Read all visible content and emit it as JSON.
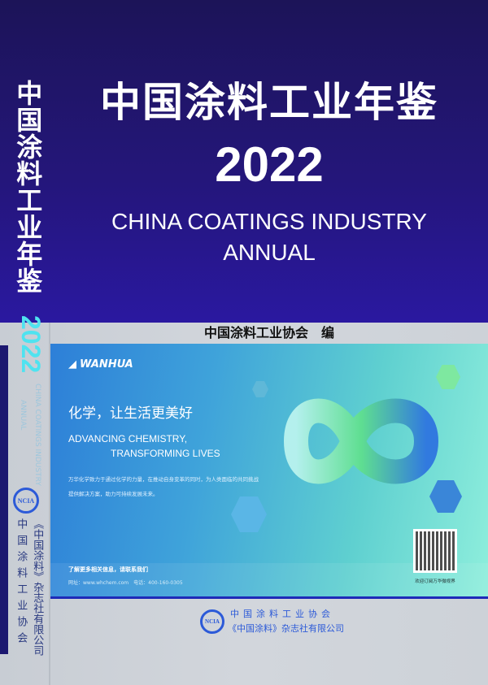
{
  "cover": {
    "title": "中国涂料工业年鉴",
    "year": "2022",
    "title_en_line1": "CHINA COATINGS INDUSTRY",
    "title_en_line2": "ANNUAL",
    "editor": "中国涂料工业协会　编"
  },
  "spine": {
    "title": "中国涂料工业年鉴",
    "year": "2022",
    "title_en_line1": "CHINA COATINGS INDUSTRY",
    "title_en_line2": "ANNUAL",
    "logo_text": "NCIA",
    "publisher1": "《中国涂料》杂志社有限公司",
    "publisher2": "中国涂料工业协会"
  },
  "ad": {
    "brand": "WANHUA",
    "slogan": "化学，让生活更美好",
    "slogan_en_line1": "ADVANCING CHEMISTRY,",
    "slogan_en_line2": "TRANSFORMING LIVES",
    "description": "万华化学致力于通过化学的力量，在推动自身变革的同时，为人类面临的共同挑战提供解决方案，助力可持续发展未来。",
    "contact_title": "了解更多相关信息，请联系我们",
    "contact_detail": "网址：www.whchem.com　电话：400-160-0305",
    "qr_caption": "欢迎订阅万华微视界",
    "colors": {
      "start": "#2d7fd8",
      "end": "#8eeedc"
    }
  },
  "publishers": {
    "logo_text": "NCIA",
    "line1": "中国涂料工业协会",
    "line2": "《中国涂料》杂志社有限公司"
  }
}
